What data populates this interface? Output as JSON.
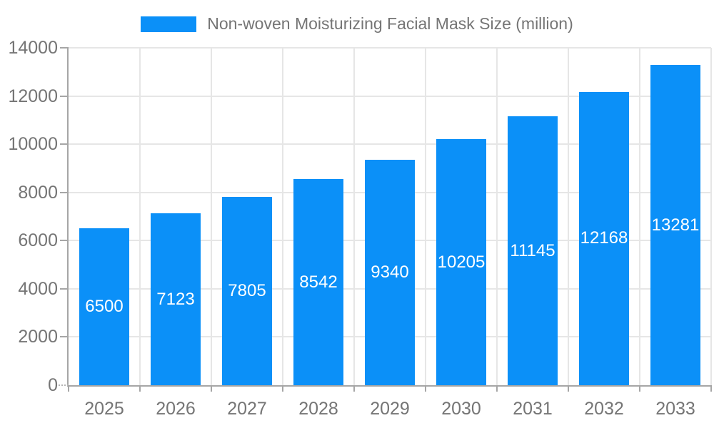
{
  "legend": {
    "label": "Non-woven Moisturizing Facial Mask Size (million)"
  },
  "chart_data": {
    "type": "bar",
    "title": "Non-woven Moisturizing Facial Mask Size (million)",
    "series_name": "Non-woven Moisturizing Facial Mask Size (million)",
    "categories": [
      "2025",
      "2026",
      "2027",
      "2028",
      "2029",
      "2030",
      "2031",
      "2032",
      "2033"
    ],
    "values": [
      6500,
      7123,
      7805,
      8542,
      9340,
      10205,
      11145,
      12168,
      13281
    ],
    "xlabel": "",
    "ylabel": "",
    "ylim": [
      0,
      14000
    ],
    "yticks": [
      0,
      2000,
      4000,
      6000,
      8000,
      10000,
      12000,
      14000
    ],
    "grid": true,
    "legend_position": "top",
    "colors": {
      "bar": "#0b90f8",
      "value_label": "#ffffff",
      "axis_text": "#757575",
      "gridline": "#e6e6e6",
      "axis_line": "#a6a6a6"
    }
  }
}
